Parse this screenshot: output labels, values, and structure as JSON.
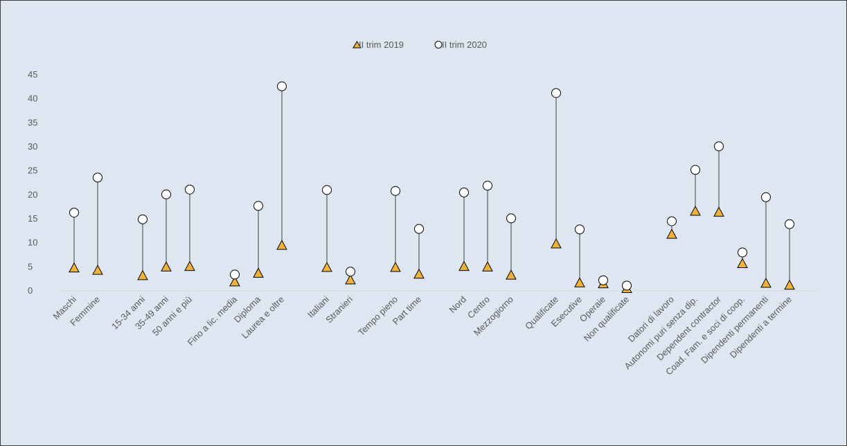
{
  "chart_data": {
    "type": "scatter",
    "title": "",
    "xlabel": "",
    "ylabel": "",
    "ylim": [
      0,
      45
    ],
    "yticks": [
      0,
      5,
      10,
      15,
      20,
      25,
      30,
      35,
      40,
      45
    ],
    "grid": false,
    "legend_position": "top-center",
    "categories": [
      "Maschi",
      "Femmine",
      "15-34 anni",
      "35-49 anni",
      "50 anni e più",
      "Fino a lic. media",
      "Diploma",
      "Laurea e oltre",
      "Italiani",
      "Stranieri",
      "Tempo pieno",
      "Part time",
      "Nord",
      "Centro",
      "Mezzogiorno",
      "Qualificate",
      "Esecutive",
      "Operaie",
      "Non qualificate",
      "Datori di lavoro",
      "Autonomi puri senza dip.",
      "Dependent contractor",
      "Coad. Fam. e soci di coop.",
      "Dipendenti permanenti",
      "Dipendenti a termine"
    ],
    "series": [
      {
        "name": "II trim 2019",
        "marker": "triangle",
        "color": "#f0b23a",
        "values": [
          4.8,
          4.3,
          3.2,
          5.0,
          5.1,
          1.9,
          3.7,
          9.5,
          4.9,
          2.3,
          4.9,
          3.5,
          5.1,
          5.0,
          3.3,
          9.8,
          1.7,
          1.5,
          0.5,
          11.8,
          16.6,
          16.4,
          5.7,
          1.6,
          1.2
        ]
      },
      {
        "name": "II trim 2020",
        "marker": "circle",
        "color": "#ffffff",
        "values": [
          16.3,
          23.6,
          14.9,
          20.1,
          21.1,
          3.4,
          17.7,
          42.6,
          21.0,
          4.0,
          20.8,
          12.9,
          20.5,
          21.9,
          15.1,
          41.2,
          12.8,
          2.2,
          1.1,
          14.5,
          25.2,
          30.1,
          8.0,
          19.5,
          13.9
        ]
      }
    ]
  },
  "colors": {
    "background": "#dde6f1",
    "axis": "#d9d9d9",
    "connector": "#404040",
    "marker_edge": "#000000"
  }
}
